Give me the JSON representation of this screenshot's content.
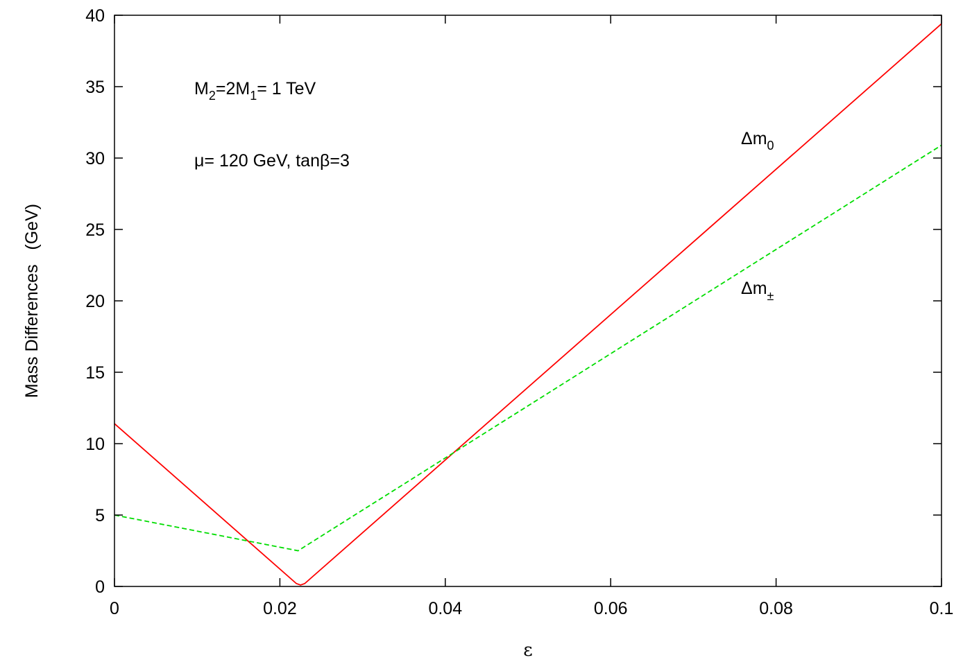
{
  "chart_data": {
    "type": "line",
    "title": "",
    "xlabel": "ε",
    "ylabel": "Mass Differences   (GeV)",
    "xlim": [
      0,
      0.1
    ],
    "ylim": [
      0,
      40
    ],
    "x_ticks": [
      "0",
      "0.02",
      "0.04",
      "0.06",
      "0.08",
      "0.1"
    ],
    "y_ticks": [
      "0",
      "5",
      "10",
      "15",
      "20",
      "25",
      "30",
      "35",
      "40"
    ],
    "grid": false,
    "annotations": [
      {
        "base": "M",
        "sub1": "2",
        "mid": "=2M",
        "sub2": "1",
        "tail": "= 1 TeV"
      },
      {
        "text": "μ= 120 GeV, tanβ=3"
      }
    ],
    "series": [
      {
        "name": "Δm0",
        "label_base": "Δm",
        "label_sub": "0",
        "color": "#ff0000",
        "style": "solid",
        "x": [
          0,
          0.022,
          0.0225,
          0.023,
          0.1
        ],
        "y": [
          11.4,
          0.2,
          0.1,
          0.2,
          39.4
        ]
      },
      {
        "name": "Δm±",
        "label_base": "Δm",
        "label_sub": "±",
        "color": "#00dd00",
        "style": "dashed",
        "x": [
          0,
          0.0222,
          0.1
        ],
        "y": [
          5.0,
          2.5,
          30.9
        ]
      }
    ]
  }
}
